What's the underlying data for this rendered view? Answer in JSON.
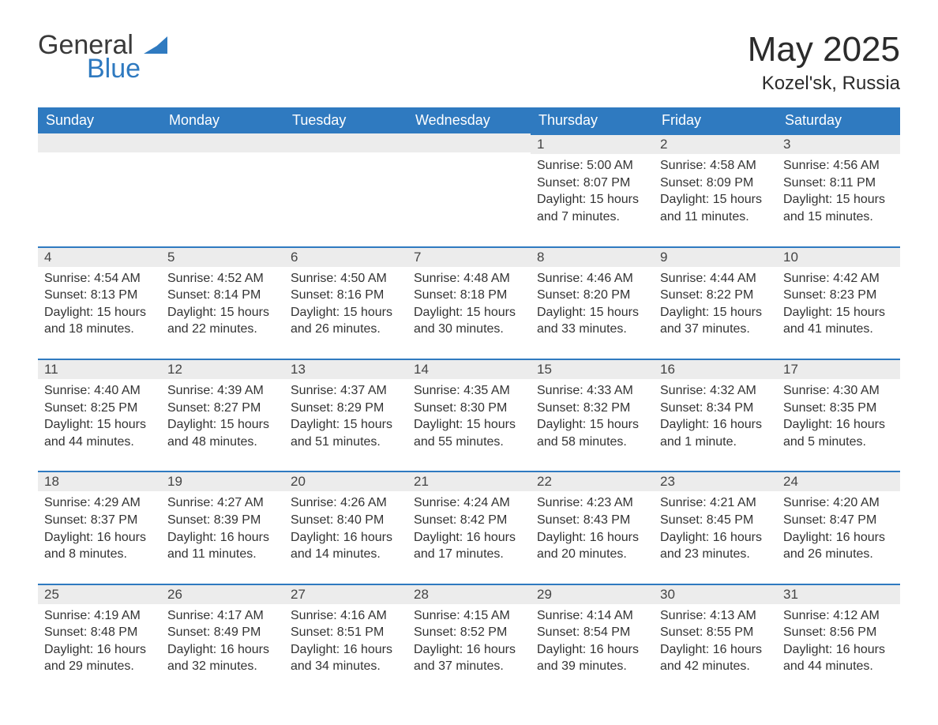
{
  "brand": {
    "word1": "General",
    "word2": "Blue",
    "color": "#2f7ac0"
  },
  "title": "May 2025",
  "location": "Kozel'sk, Russia",
  "weekdays": [
    "Sunday",
    "Monday",
    "Tuesday",
    "Wednesday",
    "Thursday",
    "Friday",
    "Saturday"
  ],
  "colors": {
    "header_bg": "#2f7ac0",
    "header_text": "#ffffff",
    "daybar_bg": "#ececec",
    "daybar_border": "#2f7ac0",
    "text": "#333333",
    "background": "#ffffff"
  },
  "font": {
    "family": "Segoe UI / Arial",
    "title_size_pt": 33,
    "header_size_pt": 14,
    "body_size_pt": 12
  },
  "weeks": [
    [
      null,
      null,
      null,
      null,
      {
        "n": "1",
        "sunrise": "5:00 AM",
        "sunset": "8:07 PM",
        "daylight": "15 hours and 7 minutes."
      },
      {
        "n": "2",
        "sunrise": "4:58 AM",
        "sunset": "8:09 PM",
        "daylight": "15 hours and 11 minutes."
      },
      {
        "n": "3",
        "sunrise": "4:56 AM",
        "sunset": "8:11 PM",
        "daylight": "15 hours and 15 minutes."
      }
    ],
    [
      {
        "n": "4",
        "sunrise": "4:54 AM",
        "sunset": "8:13 PM",
        "daylight": "15 hours and 18 minutes."
      },
      {
        "n": "5",
        "sunrise": "4:52 AM",
        "sunset": "8:14 PM",
        "daylight": "15 hours and 22 minutes."
      },
      {
        "n": "6",
        "sunrise": "4:50 AM",
        "sunset": "8:16 PM",
        "daylight": "15 hours and 26 minutes."
      },
      {
        "n": "7",
        "sunrise": "4:48 AM",
        "sunset": "8:18 PM",
        "daylight": "15 hours and 30 minutes."
      },
      {
        "n": "8",
        "sunrise": "4:46 AM",
        "sunset": "8:20 PM",
        "daylight": "15 hours and 33 minutes."
      },
      {
        "n": "9",
        "sunrise": "4:44 AM",
        "sunset": "8:22 PM",
        "daylight": "15 hours and 37 minutes."
      },
      {
        "n": "10",
        "sunrise": "4:42 AM",
        "sunset": "8:23 PM",
        "daylight": "15 hours and 41 minutes."
      }
    ],
    [
      {
        "n": "11",
        "sunrise": "4:40 AM",
        "sunset": "8:25 PM",
        "daylight": "15 hours and 44 minutes."
      },
      {
        "n": "12",
        "sunrise": "4:39 AM",
        "sunset": "8:27 PM",
        "daylight": "15 hours and 48 minutes."
      },
      {
        "n": "13",
        "sunrise": "4:37 AM",
        "sunset": "8:29 PM",
        "daylight": "15 hours and 51 minutes."
      },
      {
        "n": "14",
        "sunrise": "4:35 AM",
        "sunset": "8:30 PM",
        "daylight": "15 hours and 55 minutes."
      },
      {
        "n": "15",
        "sunrise": "4:33 AM",
        "sunset": "8:32 PM",
        "daylight": "15 hours and 58 minutes."
      },
      {
        "n": "16",
        "sunrise": "4:32 AM",
        "sunset": "8:34 PM",
        "daylight": "16 hours and 1 minute."
      },
      {
        "n": "17",
        "sunrise": "4:30 AM",
        "sunset": "8:35 PM",
        "daylight": "16 hours and 5 minutes."
      }
    ],
    [
      {
        "n": "18",
        "sunrise": "4:29 AM",
        "sunset": "8:37 PM",
        "daylight": "16 hours and 8 minutes."
      },
      {
        "n": "19",
        "sunrise": "4:27 AM",
        "sunset": "8:39 PM",
        "daylight": "16 hours and 11 minutes."
      },
      {
        "n": "20",
        "sunrise": "4:26 AM",
        "sunset": "8:40 PM",
        "daylight": "16 hours and 14 minutes."
      },
      {
        "n": "21",
        "sunrise": "4:24 AM",
        "sunset": "8:42 PM",
        "daylight": "16 hours and 17 minutes."
      },
      {
        "n": "22",
        "sunrise": "4:23 AM",
        "sunset": "8:43 PM",
        "daylight": "16 hours and 20 minutes."
      },
      {
        "n": "23",
        "sunrise": "4:21 AM",
        "sunset": "8:45 PM",
        "daylight": "16 hours and 23 minutes."
      },
      {
        "n": "24",
        "sunrise": "4:20 AM",
        "sunset": "8:47 PM",
        "daylight": "16 hours and 26 minutes."
      }
    ],
    [
      {
        "n": "25",
        "sunrise": "4:19 AM",
        "sunset": "8:48 PM",
        "daylight": "16 hours and 29 minutes."
      },
      {
        "n": "26",
        "sunrise": "4:17 AM",
        "sunset": "8:49 PM",
        "daylight": "16 hours and 32 minutes."
      },
      {
        "n": "27",
        "sunrise": "4:16 AM",
        "sunset": "8:51 PM",
        "daylight": "16 hours and 34 minutes."
      },
      {
        "n": "28",
        "sunrise": "4:15 AM",
        "sunset": "8:52 PM",
        "daylight": "16 hours and 37 minutes."
      },
      {
        "n": "29",
        "sunrise": "4:14 AM",
        "sunset": "8:54 PM",
        "daylight": "16 hours and 39 minutes."
      },
      {
        "n": "30",
        "sunrise": "4:13 AM",
        "sunset": "8:55 PM",
        "daylight": "16 hours and 42 minutes."
      },
      {
        "n": "31",
        "sunrise": "4:12 AM",
        "sunset": "8:56 PM",
        "daylight": "16 hours and 44 minutes."
      }
    ]
  ],
  "labels": {
    "sunrise": "Sunrise: ",
    "sunset": "Sunset: ",
    "daylight": "Daylight: "
  }
}
